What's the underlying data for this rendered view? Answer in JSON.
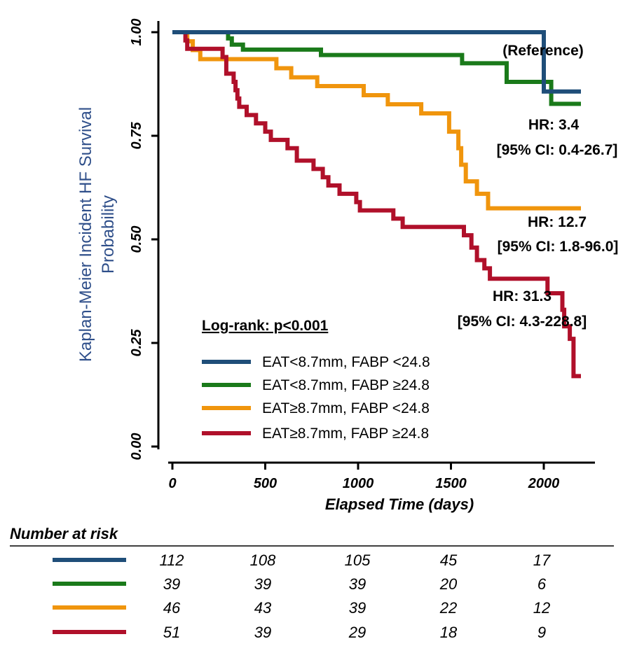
{
  "chart_data": {
    "type": "line",
    "step": true,
    "ylabel": "Kaplan-Meier Incident HF Survival Probability",
    "ylabel_lines": [
      "Kaplan-Meier Incident HF Survival",
      "Probability"
    ],
    "xlabel": "Elapsed Time (days)",
    "xlim": [
      0,
      2200
    ],
    "ylim": [
      0,
      1
    ],
    "xticks": [
      0,
      500,
      1000,
      1500,
      2000
    ],
    "xtick_labels": [
      "0",
      "500",
      "1000",
      "1500",
      "2000"
    ],
    "yticks": [
      0,
      0.25,
      0.5,
      0.75,
      1
    ],
    "ytick_labels": [
      "0.00",
      "0.25",
      "0.50",
      "0.75",
      "1.00"
    ],
    "grid": false,
    "legend_placement": "lower-left",
    "log_rank": "Log-rank: p<0.001",
    "series": [
      {
        "name": "EAT<8.7mm, FABP <24.8",
        "color": "#1f4e79",
        "points": [
          [
            0,
            1
          ],
          [
            2000,
            1
          ],
          [
            2000,
            0.857
          ],
          [
            2200,
            0.857
          ]
        ]
      },
      {
        "name": "EAT<8.7mm, FABP ≥24.8",
        "color": "#1a7a1a",
        "points": [
          [
            0,
            1
          ],
          [
            300,
            1
          ],
          [
            300,
            0.985
          ],
          [
            320,
            0.985
          ],
          [
            320,
            0.97
          ],
          [
            380,
            0.97
          ],
          [
            380,
            0.958
          ],
          [
            800,
            0.958
          ],
          [
            800,
            0.945
          ],
          [
            1560,
            0.945
          ],
          [
            1560,
            0.925
          ],
          [
            1800,
            0.925
          ],
          [
            1800,
            0.88
          ],
          [
            2040,
            0.88
          ],
          [
            2040,
            0.827
          ],
          [
            2200,
            0.827
          ]
        ]
      },
      {
        "name": "EAT≥8.7mm, FABP <24.8",
        "color": "#f0950d",
        "points": [
          [
            0,
            1
          ],
          [
            80,
            1
          ],
          [
            80,
            0.978
          ],
          [
            110,
            0.978
          ],
          [
            110,
            0.957
          ],
          [
            150,
            0.957
          ],
          [
            150,
            0.935
          ],
          [
            560,
            0.935
          ],
          [
            560,
            0.913
          ],
          [
            640,
            0.913
          ],
          [
            640,
            0.891
          ],
          [
            780,
            0.891
          ],
          [
            780,
            0.87
          ],
          [
            1030,
            0.87
          ],
          [
            1030,
            0.848
          ],
          [
            1160,
            0.848
          ],
          [
            1160,
            0.826
          ],
          [
            1340,
            0.826
          ],
          [
            1340,
            0.804
          ],
          [
            1490,
            0.804
          ],
          [
            1490,
            0.76
          ],
          [
            1540,
            0.76
          ],
          [
            1540,
            0.72
          ],
          [
            1555,
            0.72
          ],
          [
            1555,
            0.68
          ],
          [
            1580,
            0.68
          ],
          [
            1580,
            0.64
          ],
          [
            1640,
            0.64
          ],
          [
            1640,
            0.61
          ],
          [
            1700,
            0.61
          ],
          [
            1700,
            0.575
          ],
          [
            2200,
            0.575
          ]
        ]
      },
      {
        "name": "EAT≥8.7mm, FABP ≥24.8",
        "color": "#b0102a",
        "points": [
          [
            0,
            1
          ],
          [
            70,
            1
          ],
          [
            70,
            0.98
          ],
          [
            80,
            0.98
          ],
          [
            80,
            0.96
          ],
          [
            270,
            0.96
          ],
          [
            270,
            0.94
          ],
          [
            290,
            0.94
          ],
          [
            290,
            0.9
          ],
          [
            330,
            0.9
          ],
          [
            330,
            0.88
          ],
          [
            340,
            0.88
          ],
          [
            340,
            0.86
          ],
          [
            350,
            0.86
          ],
          [
            350,
            0.84
          ],
          [
            360,
            0.84
          ],
          [
            360,
            0.82
          ],
          [
            400,
            0.82
          ],
          [
            400,
            0.8
          ],
          [
            450,
            0.8
          ],
          [
            450,
            0.78
          ],
          [
            500,
            0.78
          ],
          [
            500,
            0.76
          ],
          [
            530,
            0.76
          ],
          [
            530,
            0.74
          ],
          [
            620,
            0.74
          ],
          [
            620,
            0.72
          ],
          [
            670,
            0.72
          ],
          [
            670,
            0.69
          ],
          [
            760,
            0.69
          ],
          [
            760,
            0.67
          ],
          [
            810,
            0.67
          ],
          [
            810,
            0.65
          ],
          [
            840,
            0.65
          ],
          [
            840,
            0.63
          ],
          [
            900,
            0.63
          ],
          [
            900,
            0.61
          ],
          [
            990,
            0.61
          ],
          [
            990,
            0.59
          ],
          [
            1010,
            0.59
          ],
          [
            1010,
            0.57
          ],
          [
            1190,
            0.57
          ],
          [
            1190,
            0.55
          ],
          [
            1240,
            0.55
          ],
          [
            1240,
            0.53
          ],
          [
            1570,
            0.53
          ],
          [
            1570,
            0.51
          ],
          [
            1610,
            0.51
          ],
          [
            1610,
            0.48
          ],
          [
            1640,
            0.48
          ],
          [
            1640,
            0.45
          ],
          [
            1680,
            0.45
          ],
          [
            1680,
            0.43
          ],
          [
            1710,
            0.43
          ],
          [
            1710,
            0.405
          ],
          [
            2020,
            0.405
          ],
          [
            2020,
            0.37
          ],
          [
            2100,
            0.37
          ],
          [
            2100,
            0.33
          ],
          [
            2110,
            0.33
          ],
          [
            2110,
            0.29
          ],
          [
            2140,
            0.29
          ],
          [
            2140,
            0.26
          ],
          [
            2160,
            0.26
          ],
          [
            2160,
            0.17
          ],
          [
            2200,
            0.17
          ]
        ]
      }
    ],
    "annotations": {
      "reference": "(Reference)",
      "hr1": "HR: 3.4",
      "ci1": "[95% CI: 0.4-26.7]",
      "hr2": "HR: 12.7",
      "ci2": "[95% CI: 1.8-96.0]",
      "hr3": "HR: 31.3",
      "ci3": "[95% CI: 4.3-228.8]"
    },
    "risk_table": {
      "title": "Number at risk",
      "rows": [
        [
          "112",
          "108",
          "105",
          "45",
          "17"
        ],
        [
          "39",
          "39",
          "39",
          "20",
          "6"
        ],
        [
          "46",
          "43",
          "39",
          "22",
          "12"
        ],
        [
          "51",
          "39",
          "29",
          "18",
          "9"
        ]
      ]
    }
  }
}
